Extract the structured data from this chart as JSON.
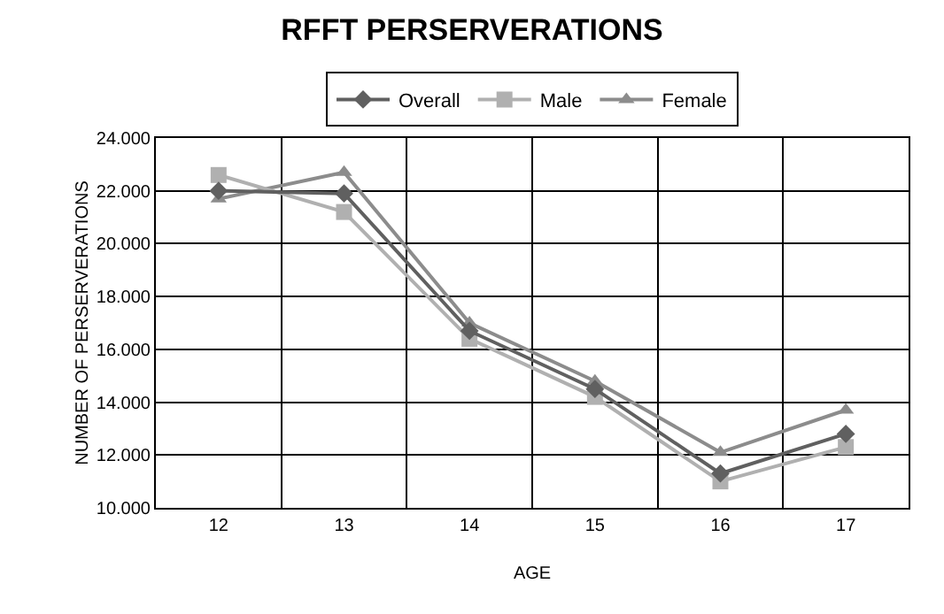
{
  "chart_data": {
    "type": "line",
    "title": "RFFT PERSERVERATIONS",
    "xlabel": "AGE",
    "ylabel": "NUMBER OF PERSERVERATIONS",
    "categories": [
      "12",
      "13",
      "14",
      "15",
      "16",
      "17"
    ],
    "series": [
      {
        "name": "Overall",
        "color": "#606060",
        "marker": "diamond",
        "values": [
          22.0,
          21.9,
          16.7,
          14.5,
          11.3,
          12.8
        ]
      },
      {
        "name": "Male",
        "color": "#b0b0b0",
        "marker": "square",
        "values": [
          22.6,
          21.2,
          16.4,
          14.2,
          11.0,
          12.3
        ]
      },
      {
        "name": "Female",
        "color": "#8c8c8c",
        "marker": "triangle",
        "values": [
          21.7,
          22.7,
          17.0,
          14.8,
          12.1,
          13.7
        ]
      }
    ],
    "ylim": [
      10,
      24
    ],
    "yticks": [
      {
        "value": 10,
        "label": "10.000"
      },
      {
        "value": 12,
        "label": "12.000"
      },
      {
        "value": 14,
        "label": "14.000"
      },
      {
        "value": 16,
        "label": "16.000"
      },
      {
        "value": 18,
        "label": "18.000"
      },
      {
        "value": 20,
        "label": "20.000"
      },
      {
        "value": 22,
        "label": "22.000"
      },
      {
        "value": 24,
        "label": "24.000"
      }
    ],
    "grid": true,
    "legend": "top"
  }
}
